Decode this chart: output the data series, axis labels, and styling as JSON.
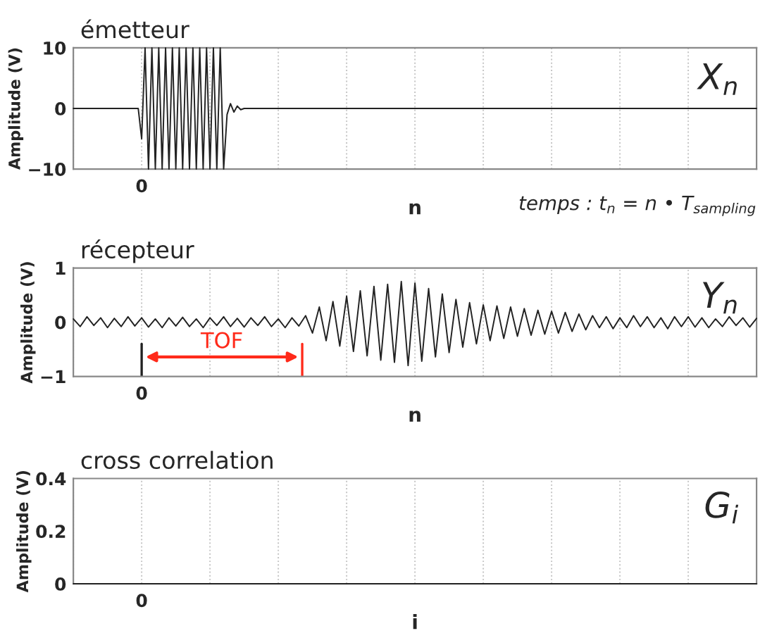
{
  "chart_data": [
    {
      "type": "line",
      "title": "émetteur",
      "xlabel": "n",
      "ylabel": "Amplitude (V)",
      "ylim": [
        -10,
        10
      ],
      "yticks": [
        {
          "value": -10,
          "label": "−10"
        },
        0,
        10
      ],
      "grid": "x",
      "annotations": [
        "X$_{n}$",
        "temps : t$_{n}$ = n • T$_{sampling}$",
        {
          "text": "0"
        }
      ],
      "categories": [
        null,
        null,
        null,
        null,
        null,
        null,
        null,
        null,
        null,
        null,
        null,
        null,
        null,
        null,
        null,
        null,
        null,
        null,
        null,
        null,
        null,
        null,
        null,
        null,
        null,
        null,
        null,
        null,
        null,
        null,
        null,
        null,
        null,
        null,
        null,
        null,
        null,
        null,
        null,
        null,
        null,
        null,
        null,
        null,
        null,
        null,
        null,
        null,
        null,
        null,
        null,
        null,
        null,
        null,
        null,
        null,
        null,
        null,
        null,
        null,
        null,
        null,
        null,
        null,
        null,
        null,
        null,
        null,
        null,
        null,
        null,
        null,
        null,
        null,
        null,
        null,
        null,
        null,
        null,
        null,
        null,
        null,
        null,
        null,
        null,
        null,
        null,
        null,
        null,
        null,
        null,
        null,
        null,
        null,
        null,
        null,
        null,
        null,
        null,
        null,
        null,
        null,
        null,
        null,
        null,
        null,
        null,
        null,
        null,
        null,
        null,
        null,
        null,
        null,
        null,
        null,
        null,
        null,
        null,
        null,
        null,
        null,
        null,
        null,
        null,
        null,
        null,
        null,
        null,
        null,
        null,
        null,
        null,
        null,
        null,
        null,
        null,
        null,
        null,
        null,
        null,
        null,
        null,
        null,
        null,
        null,
        null,
        null,
        null,
        null,
        null,
        null,
        null,
        null,
        null,
        null,
        null,
        null,
        null,
        null,
        null,
        null,
        null,
        null,
        null,
        null,
        null,
        null,
        null,
        null,
        null,
        null,
        null,
        null,
        null,
        null,
        null,
        null,
        null,
        null,
        null,
        null,
        null,
        null,
        null,
        null,
        null,
        null,
        null,
        null,
        null,
        null,
        null,
        null,
        null,
        null,
        null,
        null,
        null,
        null,
        null
      ],
      "series": [
        {
          "color": "#222222",
          "values": [
            0,
            0,
            0,
            0,
            0,
            0,
            0,
            0,
            0,
            0,
            0,
            0,
            0,
            0,
            0,
            0,
            0,
            0,
            0,
            0,
            -5,
            10,
            -10,
            10,
            -10,
            10,
            -10,
            10,
            -10,
            10,
            -10,
            10,
            -10,
            10,
            -10,
            10,
            -10,
            10,
            -10,
            10,
            -10,
            10,
            -10,
            10,
            -10,
            -1,
            0.8,
            -0.6,
            0.4,
            -0.2,
            0,
            0,
            0,
            0,
            0,
            0,
            0,
            0,
            0,
            0,
            0,
            0,
            0,
            0,
            0,
            0,
            0,
            0,
            0,
            0,
            0,
            0,
            0,
            0,
            0,
            0,
            0,
            0,
            0,
            0,
            0,
            0,
            0,
            0,
            0,
            0,
            0,
            0,
            0,
            0,
            0,
            0,
            0,
            0,
            0,
            0,
            0,
            0,
            0,
            0,
            0,
            0,
            0,
            0,
            0,
            0,
            0,
            0,
            0,
            0,
            0,
            0,
            0,
            0,
            0,
            0,
            0,
            0,
            0,
            0,
            0,
            0,
            0,
            0,
            0,
            0,
            0,
            0,
            0,
            0,
            0,
            0,
            0,
            0,
            0,
            0,
            0,
            0,
            0,
            0,
            0,
            0,
            0,
            0,
            0,
            0,
            0,
            0,
            0,
            0,
            0,
            0,
            0,
            0,
            0,
            0,
            0,
            0,
            0,
            0,
            0,
            0,
            0,
            0,
            0,
            0,
            0,
            0,
            0,
            0,
            0,
            0,
            0,
            0,
            0,
            0,
            0,
            0,
            0,
            0,
            0,
            0,
            0,
            0,
            0,
            0,
            0,
            0,
            0,
            0,
            0,
            0,
            0,
            0,
            0,
            0,
            0,
            0,
            0,
            0,
            0
          ]
        }
      ]
    },
    {
      "type": "line",
      "title": "récepteur",
      "xlabel": "n",
      "ylabel": "Amplitude (V)",
      "ylim": [
        -1,
        1
      ],
      "yticks": [
        {
          "value": -1,
          "label": "−1"
        },
        0,
        1
      ],
      "grid": "x",
      "annotations": [
        "Y$_{n}$",
        {
          "text": "0"
        },
        {
          "text": "TOF"
        }
      ],
      "categories": [
        null,
        null,
        null,
        null,
        null,
        null,
        null,
        null,
        null,
        null,
        null,
        null,
        null,
        null,
        null,
        null,
        null,
        null,
        null,
        null,
        null,
        null,
        null,
        null,
        null,
        null,
        null,
        null,
        null,
        null,
        null,
        null,
        null,
        null,
        null,
        null,
        null,
        null,
        null,
        null,
        null,
        null,
        null,
        null,
        null,
        null,
        null,
        null,
        null,
        null,
        null,
        null,
        null,
        null,
        null,
        null,
        null,
        null,
        null,
        null,
        null,
        null,
        null,
        null,
        null,
        null,
        null,
        null,
        null,
        null,
        null,
        null,
        null,
        null,
        null,
        null,
        null,
        null,
        null,
        null,
        null,
        null,
        null,
        null,
        null,
        null,
        null,
        null,
        null,
        null,
        null,
        null,
        null,
        null,
        null,
        null,
        null,
        null,
        null,
        null,
        null
      ],
      "series": [
        {
          "color": "#222222",
          "values": [
            0.06,
            -0.08,
            0.1,
            -0.06,
            0.08,
            -0.1,
            0.07,
            -0.08,
            0.1,
            -0.07,
            0.08,
            -0.09,
            0.06,
            -0.1,
            0.08,
            -0.07,
            0.09,
            -0.08,
            0.06,
            -0.1,
            0.08,
            -0.06,
            0.1,
            -0.08,
            0.07,
            -0.09,
            0.08,
            -0.06,
            0.1,
            -0.08,
            0.06,
            -0.1,
            0.08,
            -0.07,
            0.12,
            -0.2,
            0.28,
            -0.34,
            0.38,
            -0.44,
            0.48,
            -0.54,
            0.58,
            -0.62,
            0.66,
            -0.7,
            0.7,
            -0.74,
            0.75,
            -0.8,
            0.72,
            -0.72,
            0.62,
            -0.64,
            0.52,
            -0.56,
            0.42,
            -0.46,
            0.36,
            -0.4,
            0.32,
            -0.34,
            0.3,
            -0.3,
            0.28,
            -0.26,
            0.25,
            -0.24,
            0.22,
            -0.22,
            0.2,
            -0.2,
            0.18,
            -0.17,
            0.15,
            -0.14,
            0.12,
            -0.1,
            0.1,
            -0.12,
            0.08,
            -0.1,
            0.12,
            -0.08,
            0.1,
            -0.1,
            0.08,
            -0.12,
            0.1,
            -0.08,
            0.1,
            -0.09,
            0.08,
            -0.1,
            0.06,
            -0.08,
            0.1,
            -0.06,
            0.08,
            -0.09,
            0.07
          ]
        }
      ]
    },
    {
      "type": "line",
      "title": "cross correlation",
      "xlabel": "i",
      "ylabel": "Amplitude (V)",
      "ylim": [
        0,
        0.4
      ],
      "yticks": [
        0,
        0.2,
        0.4
      ],
      "grid": "x",
      "annotations": [
        "G$_{i}$",
        {
          "text": "0"
        }
      ],
      "categories": [
        null,
        null,
        null,
        null,
        null,
        null,
        null,
        null,
        null,
        null,
        null
      ],
      "series": [
        {
          "color": "#222222",
          "values": [
            0,
            0,
            0,
            0,
            0,
            0,
            0,
            0,
            0,
            0,
            0
          ]
        }
      ]
    }
  ]
}
